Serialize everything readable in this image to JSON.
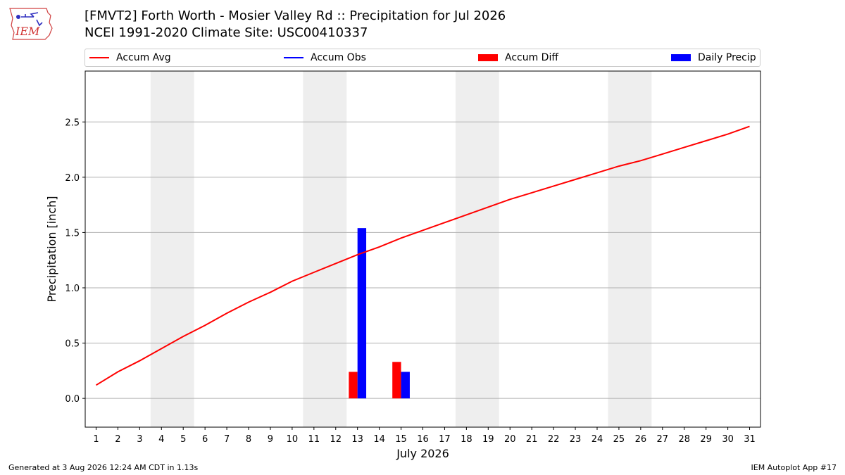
{
  "header": {
    "title_line1": "[FMVT2] Forth Worth - Mosier Valley Rd :: Precipitation for Jul 2026",
    "title_line2": "NCEI 1991-2020 Climate Site: USC00410337"
  },
  "logo": {
    "text": "IEM"
  },
  "legend": [
    {
      "label": "Accum Avg",
      "kind": "line",
      "color": "#ff0000"
    },
    {
      "label": "Accum Obs",
      "kind": "line",
      "color": "#0000ff"
    },
    {
      "label": "Accum Diff",
      "kind": "box",
      "color": "#ff0000"
    },
    {
      "label": "Daily Precip",
      "kind": "box",
      "color": "#0000ff"
    }
  ],
  "footer": {
    "left": "Generated at 3 Aug 2026 12:24 AM CDT in 1.13s",
    "right": "IEM Autoplot App #17"
  },
  "chart_data": {
    "type": "bar",
    "xlabel": "July 2026",
    "ylabel": "Precipitation [inch]",
    "xlim": [
      0.5,
      31.5
    ],
    "ylim": [
      -0.26,
      2.96
    ],
    "yticks": [
      "0.0",
      "0.5",
      "1.0",
      "1.5",
      "2.0",
      "2.5"
    ],
    "ytick_values": [
      0.0,
      0.5,
      1.0,
      1.5,
      2.0,
      2.5
    ],
    "xticks": [
      1,
      2,
      3,
      4,
      5,
      6,
      7,
      8,
      9,
      10,
      11,
      12,
      13,
      14,
      15,
      16,
      17,
      18,
      19,
      20,
      21,
      22,
      23,
      24,
      25,
      26,
      27,
      28,
      29,
      30,
      31
    ],
    "grid": "horizontal",
    "weekend_shading_days": [
      [
        4,
        5
      ],
      [
        11,
        12
      ],
      [
        18,
        19
      ],
      [
        25,
        26
      ]
    ],
    "accum_avg": [
      0.12,
      0.24,
      0.34,
      0.45,
      0.56,
      0.66,
      0.77,
      0.87,
      0.96,
      1.06,
      1.14,
      1.22,
      1.3,
      1.37,
      1.45,
      1.52,
      1.59,
      1.66,
      1.73,
      1.8,
      1.86,
      1.92,
      1.98,
      2.04,
      2.1,
      2.15,
      2.21,
      2.27,
      2.33,
      2.39,
      2.46
    ],
    "accum_diff": [
      {
        "day": 13,
        "value": 0.24
      },
      {
        "day": 15,
        "value": 0.33
      }
    ],
    "daily_precip": [
      {
        "day": 13,
        "value": 1.54
      },
      {
        "day": 15,
        "value": 0.24
      }
    ],
    "colors": {
      "avg": "#ff0000",
      "obs": "#0000ff",
      "diff": "#ff0000",
      "daily": "#0000ff",
      "shade": "#eeeeee",
      "grid": "#b0b0b0"
    }
  }
}
